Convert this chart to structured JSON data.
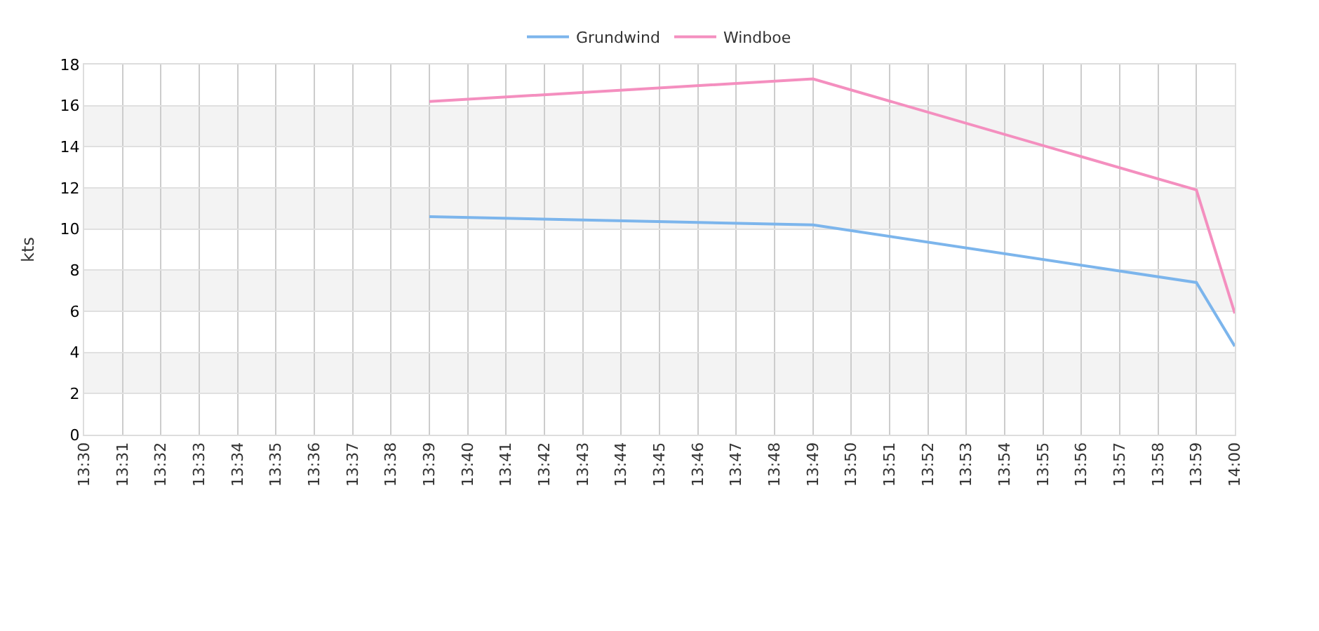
{
  "chart_data": {
    "type": "line",
    "ylabel": "kts",
    "xlim": [
      13.5,
      14.0
    ],
    "xticks": [
      {
        "value": 13.5,
        "label": "13:30"
      },
      {
        "value": 13.5167,
        "label": "13:31"
      },
      {
        "value": 13.5333,
        "label": "13:32"
      },
      {
        "value": 13.55,
        "label": "13:33"
      },
      {
        "value": 13.5667,
        "label": "13:34"
      },
      {
        "value": 13.5833,
        "label": "13:35"
      },
      {
        "value": 13.6,
        "label": "13:36"
      },
      {
        "value": 13.6167,
        "label": "13:37"
      },
      {
        "value": 13.6333,
        "label": "13:38"
      },
      {
        "value": 13.65,
        "label": "13:39"
      },
      {
        "value": 13.6667,
        "label": "13:40"
      },
      {
        "value": 13.6833,
        "label": "13:41"
      },
      {
        "value": 13.7,
        "label": "13:42"
      },
      {
        "value": 13.7167,
        "label": "13:43"
      },
      {
        "value": 13.7333,
        "label": "13:44"
      },
      {
        "value": 13.75,
        "label": "13:45"
      },
      {
        "value": 13.7667,
        "label": "13:46"
      },
      {
        "value": 13.7833,
        "label": "13:47"
      },
      {
        "value": 13.8,
        "label": "13:48"
      },
      {
        "value": 13.8167,
        "label": "13:49"
      },
      {
        "value": 13.8333,
        "label": "13:50"
      },
      {
        "value": 13.85,
        "label": "13:51"
      },
      {
        "value": 13.8667,
        "label": "13:52"
      },
      {
        "value": 13.8833,
        "label": "13:53"
      },
      {
        "value": 13.9,
        "label": "13:54"
      },
      {
        "value": 13.9167,
        "label": "13:55"
      },
      {
        "value": 13.9333,
        "label": "13:56"
      },
      {
        "value": 13.95,
        "label": "13:57"
      },
      {
        "value": 13.9667,
        "label": "13:58"
      },
      {
        "value": 13.9833,
        "label": "13:59"
      },
      {
        "value": 14.0,
        "label": "14:00"
      }
    ],
    "ylim": [
      0,
      18
    ],
    "yticks": [
      0,
      2,
      4,
      6,
      8,
      10,
      12,
      14,
      16,
      18
    ],
    "x": [
      13.65,
      13.8167,
      13.9833,
      14.0
    ],
    "series": [
      {
        "name": "Grundwind",
        "color": "#7cb5ec",
        "values": [
          10.6,
          10.2,
          7.4,
          4.3
        ]
      },
      {
        "name": "Windboe",
        "color": "#f48fbf",
        "values": [
          16.2,
          17.3,
          11.9,
          5.9
        ]
      }
    ],
    "bands": [
      {
        "axis": "y",
        "from": 2,
        "to": 4,
        "color": "#f3f3f3"
      },
      {
        "axis": "y",
        "from": 6,
        "to": 8,
        "color": "#f3f3f3"
      },
      {
        "axis": "y",
        "from": 10,
        "to": 12,
        "color": "#f3f3f3"
      },
      {
        "axis": "y",
        "from": 14,
        "to": 16,
        "color": "#f3f3f3"
      }
    ],
    "grid": true,
    "legend": "top",
    "marker": "none",
    "line_style": "solid"
  }
}
